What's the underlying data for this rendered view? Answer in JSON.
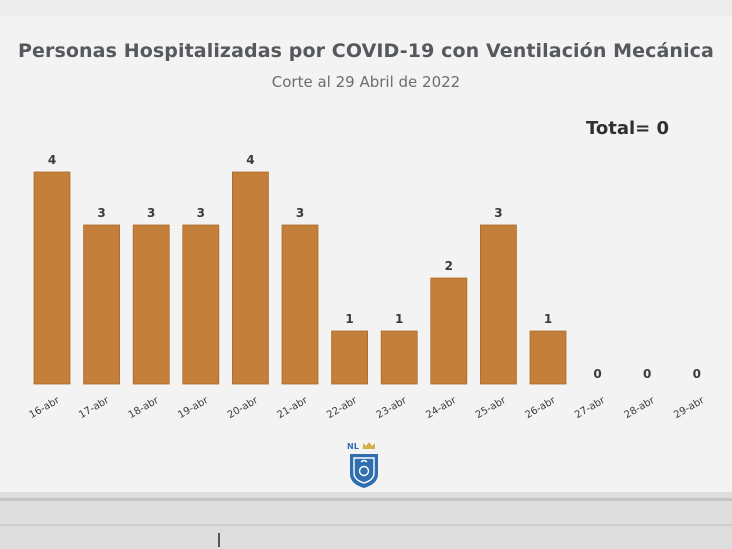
{
  "title": "Personas Hospitalizadas por COVID-19 con Ventilación Mecánica",
  "subtitle": "Corte al 29 Abril de 2022",
  "total_label": "Total= 0",
  "logo_text": "NL",
  "colors": {
    "bar": "#c4803a",
    "background": "#f3f3f3",
    "title": "#55585c",
    "text": "#3a3b3d"
  },
  "chart_data": {
    "type": "bar",
    "title": "Personas Hospitalizadas por COVID-19 con Ventilación Mecánica",
    "subtitle": "Corte al 29 Abril de 2022",
    "categories": [
      "16-abr",
      "17-abr",
      "18-abr",
      "19-abr",
      "20-abr",
      "21-abr",
      "22-abr",
      "23-abr",
      "24-abr",
      "25-abr",
      "26-abr",
      "27-abr",
      "28-abr",
      "29-abr"
    ],
    "values": [
      4,
      3,
      3,
      3,
      4,
      3,
      1,
      1,
      2,
      3,
      1,
      0,
      0,
      0
    ],
    "xlabel": "",
    "ylabel": "",
    "ylim": [
      0,
      4
    ],
    "grid": false,
    "legend": "none",
    "data_labels": true,
    "annotations": [
      "Total= 0"
    ]
  }
}
